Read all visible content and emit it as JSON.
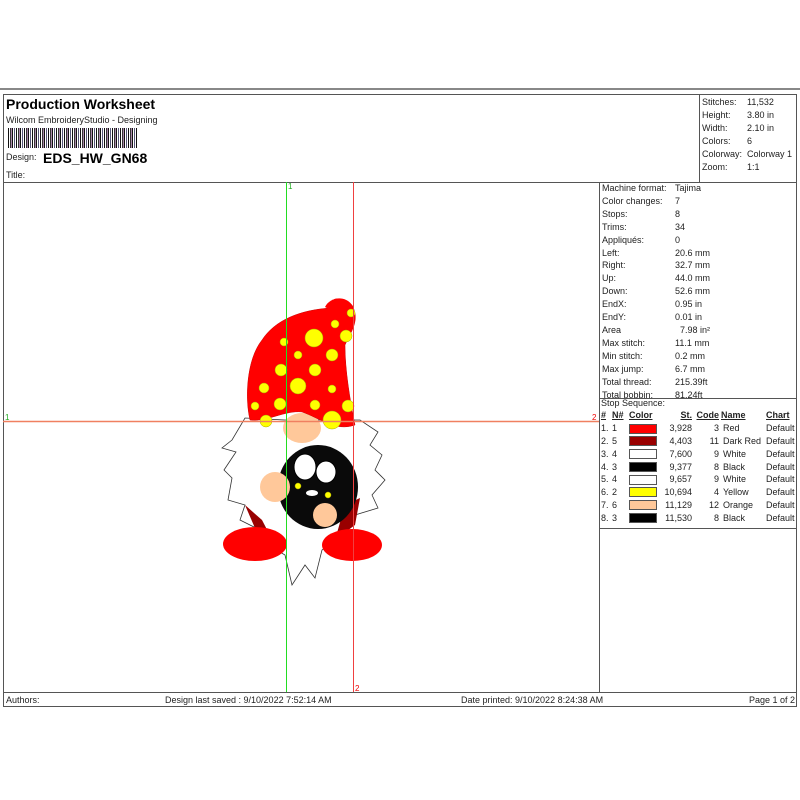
{
  "header": {
    "title": "Production Worksheet",
    "software": "Wilcom EmbroideryStudio - Designing",
    "design_label": "Design:",
    "design_value": "EDS_HW_GN68",
    "title_label": "Title:"
  },
  "stats": [
    {
      "label": "Stitches:",
      "value": "11,532"
    },
    {
      "label": "Height:",
      "value": "3.80 in"
    },
    {
      "label": "Width:",
      "value": "2.10 in"
    },
    {
      "label": "Colors:",
      "value": "6"
    },
    {
      "label": "Colorway:",
      "value": "Colorway 1"
    },
    {
      "label": "Zoom:",
      "value": "1:1"
    }
  ],
  "machine": [
    {
      "label": "Machine format:",
      "value": "Tajima"
    },
    {
      "label": "Color changes:",
      "value": "7"
    },
    {
      "label": "Stops:",
      "value": "8"
    },
    {
      "label": "Trims:",
      "value": "34"
    },
    {
      "label": "Appliqués:",
      "value": "0"
    },
    {
      "label": "Left:",
      "value": "20.6 mm"
    },
    {
      "label": "Right:",
      "value": "32.7 mm"
    },
    {
      "label": "Up:",
      "value": "44.0 mm"
    },
    {
      "label": "Down:",
      "value": "52.6 mm"
    },
    {
      "label": "EndX:",
      "value": "0.95 in"
    },
    {
      "label": "EndY:",
      "value": "0.01 in"
    },
    {
      "label": "Area",
      "value": "  7.98 in²"
    },
    {
      "label": "Max stitch:",
      "value": "11.1 mm"
    },
    {
      "label": "Min stitch:",
      "value": "0.2 mm"
    },
    {
      "label": "Max jump:",
      "value": "6.7 mm"
    },
    {
      "label": "Total thread:",
      "value": "215.39ft"
    },
    {
      "label": "Total bobbin:",
      "value": "81.24ft"
    }
  ],
  "stop_sequence": {
    "title": "Stop Sequence:",
    "headers": {
      "num": "#",
      "n": "N#",
      "color": "Color",
      "st": "St.",
      "code": "Code",
      "name": "Name",
      "chart": "Chart"
    },
    "rows": [
      {
        "num": "1.",
        "n": "1",
        "color": "#ff0000",
        "st": "3,928",
        "code": "3",
        "name": "Red",
        "chart": "Default"
      },
      {
        "num": "2.",
        "n": "5",
        "color": "#990000",
        "st": "4,403",
        "code": "11",
        "name": "Dark Red",
        "chart": "Default"
      },
      {
        "num": "3.",
        "n": "4",
        "color": "#ffffff",
        "st": "7,600",
        "code": "9",
        "name": "White",
        "chart": "Default"
      },
      {
        "num": "4.",
        "n": "3",
        "color": "#000000",
        "st": "9,377",
        "code": "8",
        "name": "Black",
        "chart": "Default"
      },
      {
        "num": "5.",
        "n": "4",
        "color": "#ffffff",
        "st": "9,657",
        "code": "9",
        "name": "White",
        "chart": "Default"
      },
      {
        "num": "6.",
        "n": "2",
        "color": "#ffff00",
        "st": "10,694",
        "code": "4",
        "name": "Yellow",
        "chart": "Default"
      },
      {
        "num": "7.",
        "n": "6",
        "color": "#ffc89a",
        "st": "11,129",
        "code": "12",
        "name": "Orange",
        "chart": "Default"
      },
      {
        "num": "8.",
        "n": "3",
        "color": "#000000",
        "st": "11,530",
        "code": "8",
        "name": "Black",
        "chart": "Default"
      }
    ]
  },
  "guides": {
    "v1": "1",
    "v2": "2",
    "h1": "1",
    "h2": "2"
  },
  "footer": {
    "authors": "Authors:",
    "saved": "Design last saved : 9/10/2022 7:52:14 AM",
    "printed": "Date printed: 9/10/2022 8:24:38 AM",
    "page": "Page 1 of 2"
  }
}
